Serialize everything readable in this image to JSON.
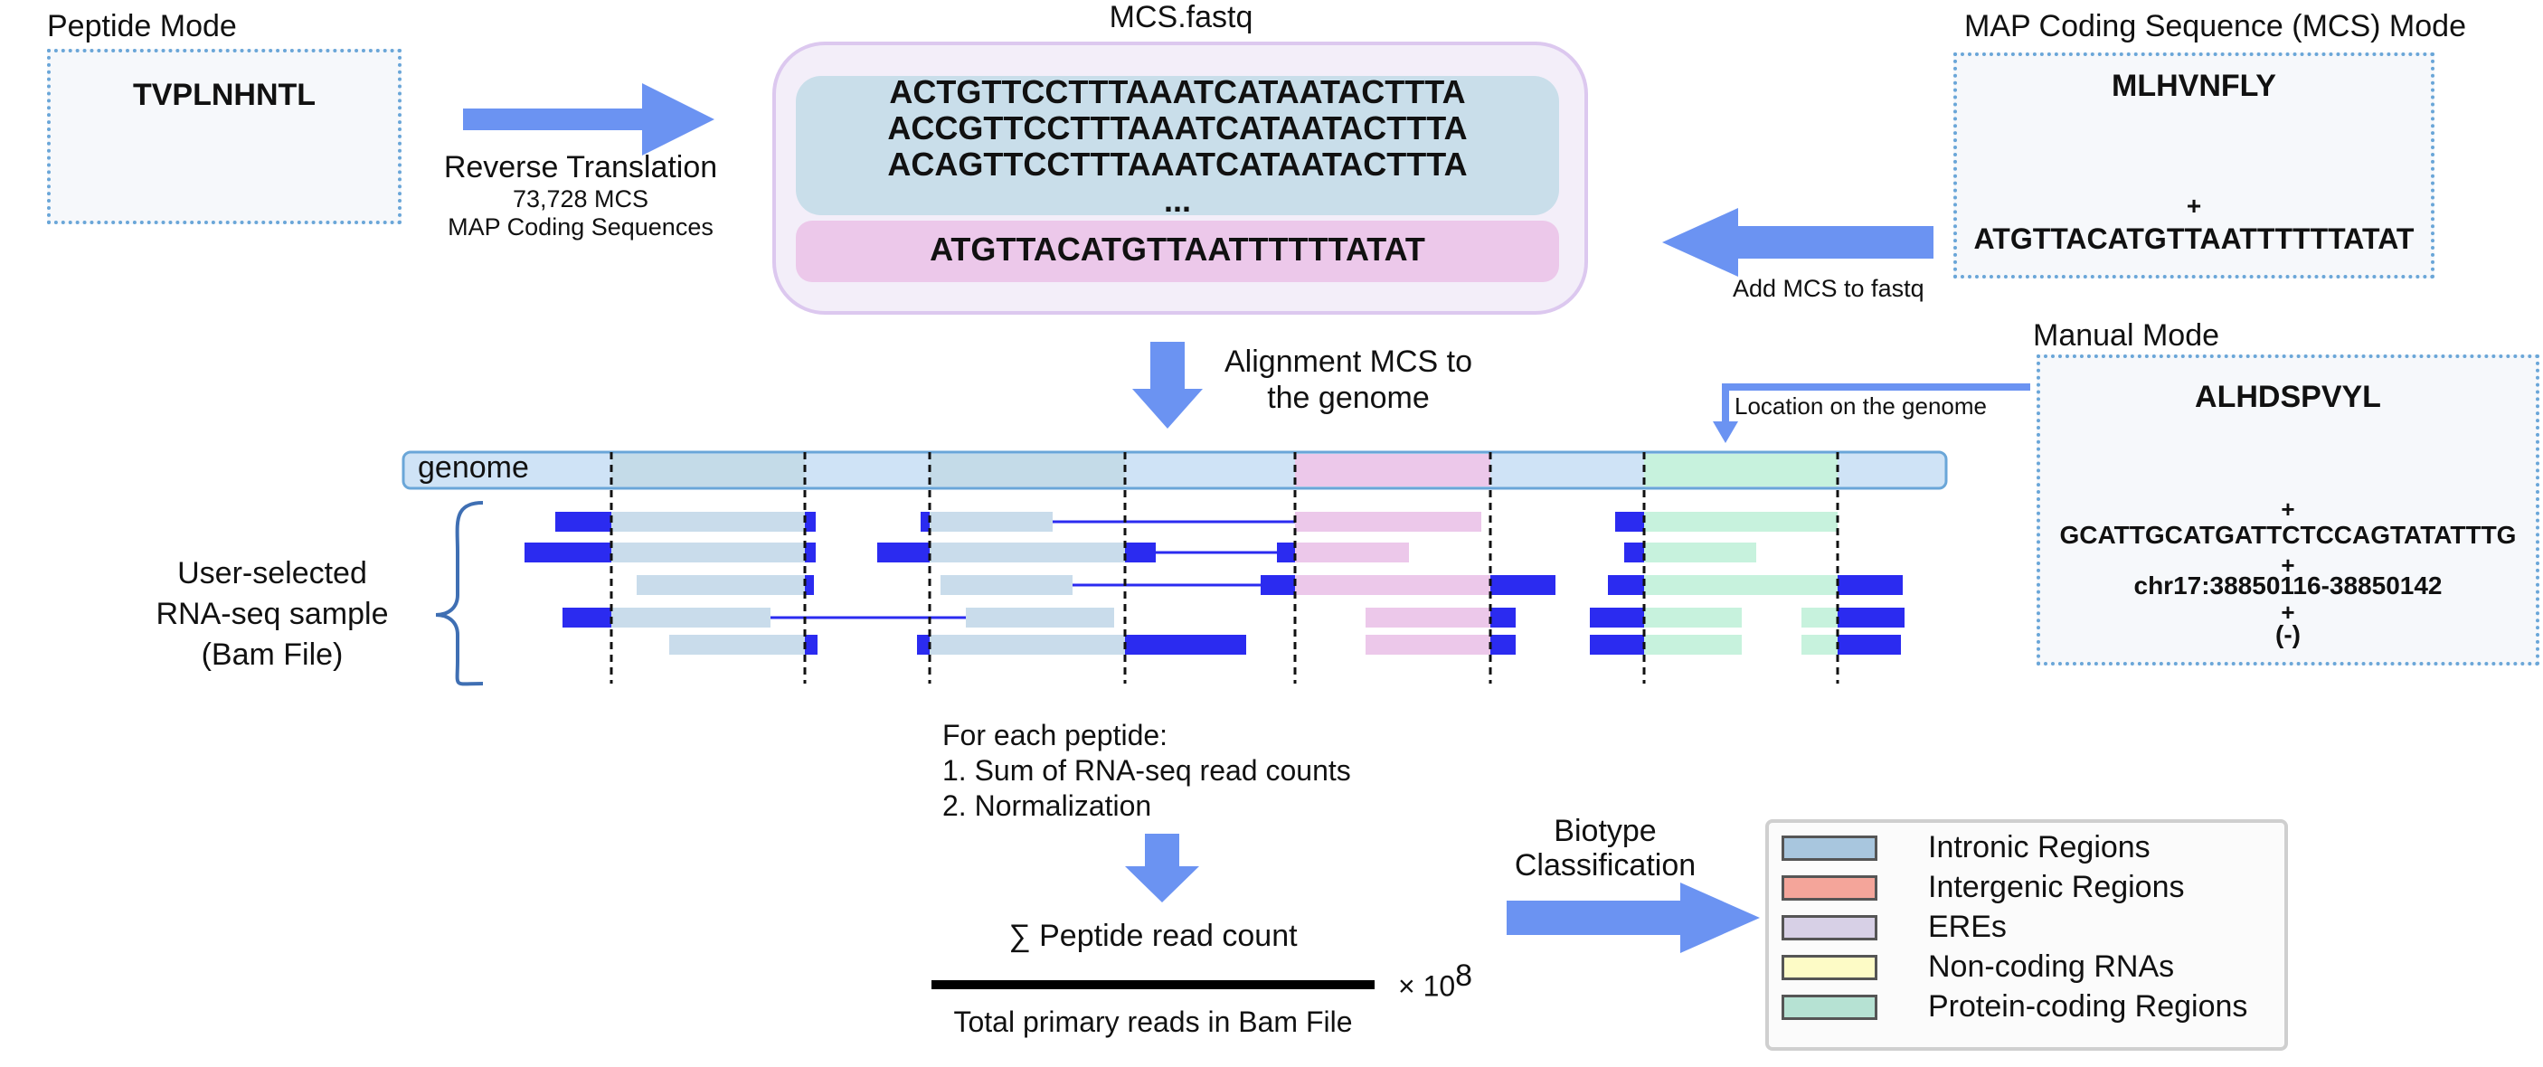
{
  "peptide_mode": {
    "title": "Peptide Mode",
    "peptide": "TVPLNHNTL"
  },
  "reverse_translation": {
    "label": "Reverse Translation",
    "count": "73,728 MCS",
    "sub": "MAP Coding Sequences"
  },
  "mcs_fastq": {
    "title": "MCS.fastq",
    "sequences": [
      "ACTGTTCCTTTAAATCATAATACTTTA",
      "ACCGTTCCTTTAAATCATAATACTTTA",
      "ACAGTTCCTTTAAATCATAATACTTTA",
      "..."
    ],
    "added_sequence": "ATGTTACATGTTAATTTTTTATAT"
  },
  "mcs_mode": {
    "title": "MAP Coding Sequence (MCS) Mode",
    "peptide": "MLHVNFLY",
    "plus": "+",
    "sequence": "ATGTTACATGTTAATTTTTTATAT",
    "arrow_label": "Add MCS to fastq"
  },
  "alignment": {
    "label_line1": "Alignment MCS to",
    "label_line2": "the genome"
  },
  "manual_mode": {
    "title": "Manual Mode",
    "arrow_label": "Location on the genome",
    "peptide": "ALHDSPVYL",
    "plus1": "+",
    "sequence": "GCATTGCATGATTCTCCAGTATATTTG",
    "plus2": "+",
    "location": "chr17:38850116-38850142",
    "plus3": "+",
    "strand": "(-)"
  },
  "genome": {
    "label": "genome"
  },
  "rnaseq": {
    "line1": "User-selected",
    "line2": "RNA-seq sample",
    "line3": "(Bam File)"
  },
  "per_peptide": {
    "line1": "For each peptide:",
    "line2": "1. Sum of RNA-seq read counts",
    "line3": "2. Normalization"
  },
  "formula": {
    "numerator": "∑ Peptide read count",
    "denominator": "Total primary reads in Bam File",
    "times": "× 10",
    "exponent": "8"
  },
  "biotype": {
    "line1": "Biotype",
    "line2": "Classification"
  },
  "legend": [
    {
      "label": "Intronic Regions",
      "color": "#a8c6de"
    },
    {
      "label": "Intergenic Regions",
      "color": "#f4a59a"
    },
    {
      "label": "EREs",
      "color": "#d7d0e6"
    },
    {
      "label": "Non-coding RNAs",
      "color": "#fdfbc6"
    },
    {
      "label": "Protein-coding Regions",
      "color": "#b6e2d3"
    }
  ],
  "colors": {
    "arrow": "#6b93f2",
    "read": "#2b2bf0",
    "exon_blue": "#c9dceb",
    "exon_pink": "#ecc8ea",
    "exon_green": "#c7f2dd",
    "peptide_blue": "#a9d4f0",
    "peptide_pink": "#eab6ea",
    "peptide_green": "#bff0d8"
  }
}
